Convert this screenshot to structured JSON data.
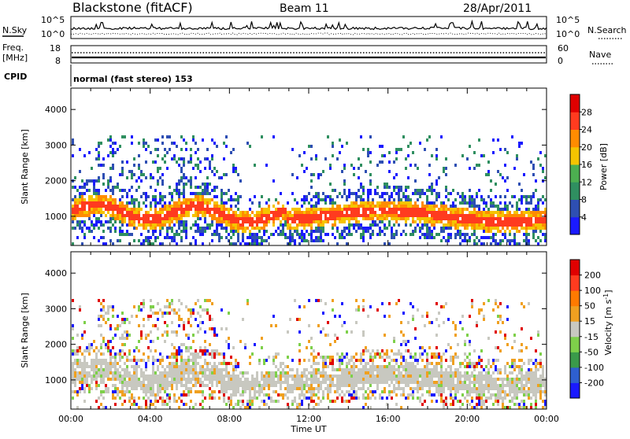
{
  "header": {
    "title": "Blackstone (fitACF)",
    "beam": "Beam 11",
    "date": "28/Apr/2011"
  },
  "nsky_panel": {
    "left_label": "N.Sky",
    "left_ticks": [
      "10^5",
      "10^0"
    ],
    "right_ticks": [
      "10^5",
      "10^0"
    ],
    "right_label": "N.Search"
  },
  "freq_panel": {
    "left_label_1": "Freq.",
    "left_label_2": "[MHz]",
    "left_ticks": [
      "18",
      "8"
    ],
    "right_ticks": [
      "60",
      "0"
    ],
    "right_label": "Nave"
  },
  "cpid": {
    "label": "CPID",
    "value": "normal (fast stereo) 153"
  },
  "chart_data": [
    {
      "type": "heatmap",
      "title": "",
      "ylabel": "Slant Range [km]",
      "ylim": [
        180,
        4600
      ],
      "yticks": [
        "1000",
        "2000",
        "3000",
        "4000"
      ],
      "xlabel": "",
      "xticks": [],
      "colorbar": {
        "label": "Power [dB]",
        "ticks": [
          "4",
          "8",
          "12",
          "16",
          "20",
          "24",
          "28"
        ],
        "colors": [
          "#1a1aff",
          "#2e4fb3",
          "#2f8f60",
          "#4caf50",
          "#f5c400",
          "#ff8c00",
          "#ff3b1f",
          "#e00000"
        ]
      },
      "grid": false
    },
    {
      "type": "heatmap",
      "title": "",
      "ylabel": "Slant Range [km]",
      "ylim": [
        180,
        4600
      ],
      "yticks": [
        "1000",
        "2000",
        "3000",
        "4000"
      ],
      "xlabel": "Time UT",
      "xticks": [
        "00:00",
        "04:00",
        "08:00",
        "12:00",
        "16:00",
        "20:00",
        "00:00"
      ],
      "colorbar": {
        "label": "Velocity [m s",
        "label_sup": "-1",
        "label_end": "]",
        "ticks": [
          "200",
          "100",
          "50",
          "15",
          "-15",
          "-50",
          "-100",
          "-200"
        ],
        "colors": [
          "#1a1aff",
          "#2e5fd0",
          "#3a9a4a",
          "#7ed04a",
          "#c8c8c0",
          "#f0a020",
          "#ff7a00",
          "#ff3b1f",
          "#e00000"
        ]
      },
      "grid": false
    }
  ]
}
